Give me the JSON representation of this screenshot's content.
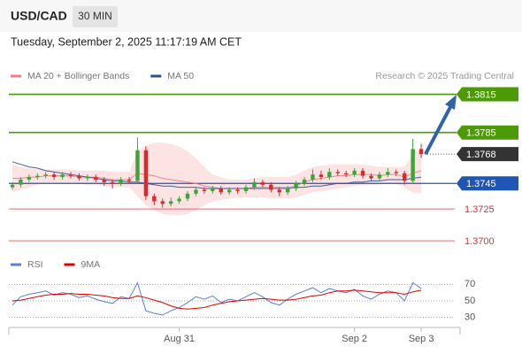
{
  "header": {
    "symbol": "USD/CAD",
    "interval": "30 MIN",
    "timestamp": "Tuesday, September 2, 2025 11:17:19 AM CET"
  },
  "chart_data": [
    {
      "type": "candlestick",
      "credit": "Research © 2025 Trading Central",
      "categories": [
        null,
        null,
        null,
        null,
        null,
        null,
        null,
        null,
        null,
        null,
        null,
        null,
        null,
        null,
        null,
        null,
        null,
        null,
        null,
        null,
        "Aug 31",
        null,
        null,
        null,
        null,
        null,
        null,
        null,
        null,
        null,
        null,
        null,
        null,
        null,
        null,
        null,
        null,
        null,
        null,
        null,
        null,
        "Sep 2",
        null,
        null,
        null,
        null,
        null,
        null,
        null,
        "Sep 3"
      ],
      "open": [
        1.3742,
        1.3744,
        1.3748,
        1.375,
        1.3751,
        1.3752,
        1.375,
        1.3752,
        1.3751,
        1.3749,
        1.375,
        1.3748,
        1.3746,
        1.3745,
        1.3748,
        1.3747,
        1.3771,
        1.3735,
        1.3731,
        1.3729,
        1.3731,
        1.3733,
        1.3737,
        1.374,
        1.3739,
        1.3741,
        1.3738,
        1.374,
        1.3739,
        1.3742,
        1.3746,
        1.3744,
        1.374,
        1.3738,
        1.3741,
        1.3745,
        1.3748,
        1.3752,
        1.375,
        1.3754,
        1.3753,
        1.3752,
        1.3755,
        1.3751,
        1.3749,
        1.3752,
        1.3754,
        1.3753,
        1.3747,
        1.3772
      ],
      "high": [
        1.3746,
        1.375,
        1.3752,
        1.3753,
        1.3754,
        1.3754,
        1.3754,
        1.3754,
        1.3753,
        1.3752,
        1.3752,
        1.375,
        1.3748,
        1.375,
        1.375,
        1.3781,
        1.3774,
        1.3737,
        1.3733,
        1.3734,
        1.3735,
        1.3739,
        1.3742,
        1.3742,
        1.3743,
        1.3743,
        1.3742,
        1.3742,
        1.3744,
        1.3749,
        1.3748,
        1.3746,
        1.3742,
        1.3743,
        1.3747,
        1.375,
        1.3756,
        1.3755,
        1.3757,
        1.3756,
        1.3755,
        1.3757,
        1.3757,
        1.3753,
        1.3754,
        1.3757,
        1.3756,
        1.3755,
        1.378,
        1.3776
      ],
      "low": [
        1.374,
        1.3742,
        1.3746,
        1.3748,
        1.3749,
        1.3748,
        1.3748,
        1.3749,
        1.3747,
        1.3747,
        1.3746,
        1.3743,
        1.3741,
        1.3743,
        1.3745,
        1.3745,
        1.3732,
        1.3728,
        1.3726,
        1.3727,
        1.3729,
        1.3731,
        1.3735,
        1.3737,
        1.3737,
        1.3736,
        1.3736,
        1.3737,
        1.3737,
        1.374,
        1.3742,
        1.3738,
        1.3735,
        1.3736,
        1.3739,
        1.3743,
        1.3746,
        1.3748,
        1.3748,
        1.3751,
        1.375,
        1.375,
        1.3749,
        1.3747,
        1.3747,
        1.375,
        1.3751,
        1.3744,
        1.3745,
        1.3765
      ],
      "close": [
        1.3744,
        1.3748,
        1.375,
        1.3751,
        1.3752,
        1.375,
        1.3752,
        1.3751,
        1.3749,
        1.375,
        1.3748,
        1.3746,
        1.3745,
        1.3748,
        1.3747,
        1.3771,
        1.3735,
        1.3731,
        1.3729,
        1.3731,
        1.3733,
        1.3737,
        1.374,
        1.3739,
        1.3741,
        1.3738,
        1.374,
        1.3739,
        1.3742,
        1.3746,
        1.3744,
        1.374,
        1.3738,
        1.3741,
        1.3745,
        1.3748,
        1.3752,
        1.375,
        1.3754,
        1.3753,
        1.3752,
        1.3755,
        1.3751,
        1.3749,
        1.3752,
        1.3754,
        1.3753,
        1.3747,
        1.3772,
        1.3768
      ],
      "up_color": "#3aa63a",
      "down_color": "#d92b2b",
      "series": [
        {
          "name": "MA 20 + Bollinger Bands",
          "color": "#f08080",
          "band_color": "#fde3e3",
          "values": [
            1.3749,
            1.3749,
            1.375,
            1.375,
            1.3751,
            1.3751,
            1.3751,
            1.3751,
            1.375,
            1.375,
            1.375,
            1.3749,
            1.3748,
            1.3748,
            1.3748,
            1.3753,
            1.3752,
            1.3751,
            1.3749,
            1.3748,
            1.3747,
            1.3746,
            1.3745,
            1.3743,
            1.3742,
            1.3741,
            1.3741,
            1.3741,
            1.3741,
            1.3742,
            1.3742,
            1.3742,
            1.3742,
            1.3742,
            1.3743,
            1.3746,
            1.3748,
            1.3749,
            1.375,
            1.3751,
            1.3751,
            1.3752,
            1.3752,
            1.3752,
            1.3751,
            1.3752,
            1.3752,
            1.375,
            1.3753,
            1.3755
          ],
          "upper": [
            1.376,
            1.3758,
            1.3757,
            1.3756,
            1.3756,
            1.3756,
            1.3756,
            1.3756,
            1.3755,
            1.3755,
            1.3755,
            1.3755,
            1.3754,
            1.3754,
            1.3754,
            1.377,
            1.3775,
            1.3777,
            1.3777,
            1.3776,
            1.3774,
            1.377,
            1.3765,
            1.3758,
            1.3752,
            1.375,
            1.3748,
            1.3748,
            1.3748,
            1.3749,
            1.375,
            1.375,
            1.375,
            1.375,
            1.3752,
            1.3755,
            1.3758,
            1.3759,
            1.376,
            1.376,
            1.376,
            1.376,
            1.376,
            1.3759,
            1.3758,
            1.3758,
            1.3758,
            1.3758,
            1.3768,
            1.3772
          ],
          "lower": [
            1.3738,
            1.374,
            1.3742,
            1.3744,
            1.3745,
            1.3745,
            1.3745,
            1.3745,
            1.3745,
            1.3744,
            1.3744,
            1.3743,
            1.3742,
            1.3742,
            1.3742,
            1.3735,
            1.3728,
            1.3724,
            1.3721,
            1.372,
            1.372,
            1.3721,
            1.3724,
            1.3728,
            1.3731,
            1.3732,
            1.3733,
            1.3734,
            1.3734,
            1.3734,
            1.3734,
            1.3733,
            1.3733,
            1.3733,
            1.3734,
            1.3736,
            1.3738,
            1.3739,
            1.374,
            1.3741,
            1.3742,
            1.3743,
            1.3744,
            1.3744,
            1.3744,
            1.3745,
            1.3745,
            1.3742,
            1.3738,
            1.3737
          ]
        },
        {
          "name": "MA 50",
          "color": "#2b4f8e",
          "values": [
            1.3762,
            1.376,
            1.3758,
            1.3757,
            1.3755,
            1.3754,
            1.3753,
            1.3752,
            1.3751,
            1.375,
            1.3749,
            1.3748,
            1.3747,
            1.3747,
            1.3746,
            1.3746,
            1.3745,
            1.3744,
            1.3743,
            1.3743,
            1.3742,
            1.3742,
            1.3742,
            1.3741,
            1.3741,
            1.3741,
            1.3741,
            1.3741,
            1.3741,
            1.3741,
            1.3741,
            1.3741,
            1.3741,
            1.3741,
            1.3742,
            1.3742,
            1.3743,
            1.3743,
            1.3744,
            1.3745,
            1.3745,
            1.3746,
            1.3746,
            1.3747,
            1.3747,
            1.3748,
            1.3748,
            1.3748,
            1.3749,
            1.375
          ]
        }
      ],
      "ylim": [
        1.3823,
        1.3691
      ],
      "levels": [
        {
          "value": 1.3815,
          "color": "#4c9a06",
          "style": "box"
        },
        {
          "value": 1.3785,
          "color": "#4c9a06",
          "style": "box"
        },
        {
          "value": 1.3768,
          "color": "#333333",
          "style": "current"
        },
        {
          "value": 1.3745,
          "color": "#1f55b5",
          "style": "box"
        },
        {
          "value": 1.3725,
          "color": "#e03030",
          "style": "text"
        },
        {
          "value": 1.37,
          "label": "1.3700",
          "color": "#e03030",
          "style": "text"
        }
      ]
    },
    {
      "type": "line",
      "series": [
        {
          "name": "RSI",
          "color": "#5b7fd6",
          "values": [
            45,
            55,
            58,
            60,
            62,
            57,
            60,
            58,
            54,
            56,
            52,
            49,
            47,
            55,
            53,
            72,
            38,
            35,
            33,
            38,
            42,
            48,
            55,
            52,
            56,
            48,
            52,
            50,
            55,
            60,
            55,
            48,
            45,
            52,
            58,
            62,
            66,
            60,
            65,
            62,
            60,
            64,
            56,
            52,
            58,
            62,
            60,
            50,
            72,
            65
          ]
        },
        {
          "name": "9MA",
          "color": "#e00000",
          "values": [
            50,
            51,
            53,
            55,
            57,
            58,
            58,
            59,
            58,
            58,
            57,
            56,
            54,
            53,
            53,
            56,
            54,
            51,
            48,
            44,
            41,
            40,
            41,
            42,
            45,
            47,
            49,
            50,
            51,
            52,
            53,
            52,
            51,
            51,
            52,
            54,
            56,
            57,
            60,
            62,
            62,
            63,
            62,
            61,
            60,
            60,
            60,
            58,
            61,
            63
          ]
        }
      ],
      "ylim": [
        20,
        80
      ],
      "yticks": [
        30,
        50,
        70
      ]
    }
  ]
}
